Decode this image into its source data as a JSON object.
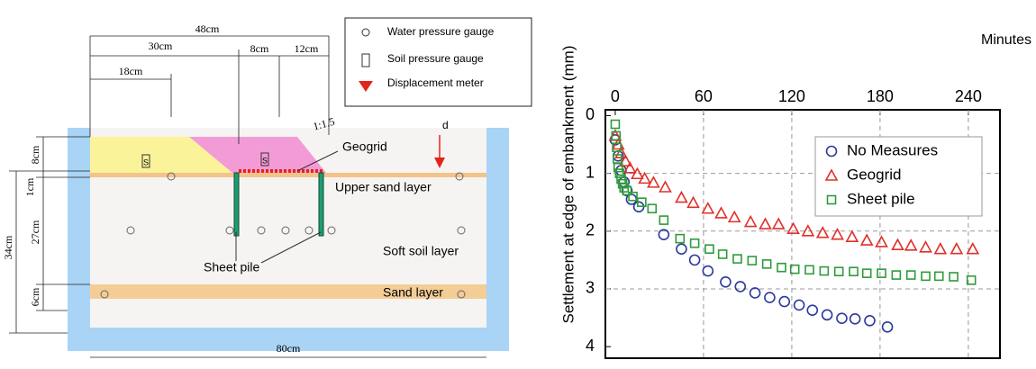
{
  "diagram": {
    "legend": {
      "water_gauge": "Water pressure gauge",
      "soil_gauge": "Soil pressure gauge",
      "displacement": "Displacement meter"
    },
    "dimensions": {
      "total_top": "48cm",
      "left_top": "30cm",
      "mid_top": "8cm",
      "right_top": "12cm",
      "inner_top": "18cm",
      "bottom": "80cm",
      "height": "34cm",
      "embank": "8cm",
      "upper": "1cm",
      "soft": "27cm",
      "sand": "6cm"
    },
    "labels": {
      "slope": "1:1.5",
      "geogrid": "Geogrid",
      "d": "d",
      "upper_sand": "Upper sand layer",
      "sheet_pile": "Sheet pile",
      "soft_soil": "Soft soil layer",
      "sand_layer": "Sand layer",
      "gauge_s": "S"
    }
  },
  "chart_data": {
    "type": "scatter",
    "x_label": "Minutes",
    "y_label": "Settlement at edge of embankment (mm)",
    "xlim": [
      -6.7,
      261.5
    ],
    "xticks": [
      0,
      60,
      120,
      180,
      240
    ],
    "ylim": [
      -0.1,
      4.2
    ],
    "yticks": [
      0,
      1,
      2,
      3,
      4
    ],
    "y_inverted": true,
    "grid": true,
    "legend": "upper-right",
    "series": [
      {
        "name": "No Measures",
        "color": "#2b3a9b",
        "marker": "circle",
        "x": [
          0,
          2,
          4,
          6,
          8,
          11,
          16,
          33,
          45,
          54,
          63,
          75,
          85,
          95,
          105,
          115,
          125,
          134,
          144,
          154,
          163,
          173,
          185
        ],
        "values": [
          0.42,
          0.7,
          0.95,
          1.15,
          1.3,
          1.45,
          1.58,
          2.06,
          2.31,
          2.5,
          2.69,
          2.88,
          2.96,
          3.07,
          3.15,
          3.22,
          3.28,
          3.37,
          3.45,
          3.51,
          3.52,
          3.55,
          3.66
        ]
      },
      {
        "name": "Geogrid",
        "color": "#e0302a",
        "marker": "triangle",
        "x": [
          0,
          2,
          4,
          7,
          10,
          15,
          20,
          26,
          34,
          45,
          53,
          63,
          72,
          81,
          92,
          102,
          111,
          121,
          131,
          141,
          151,
          161,
          171,
          181,
          192,
          201,
          211,
          221,
          232,
          243
        ],
        "values": [
          0.35,
          0.5,
          0.65,
          0.79,
          0.91,
          1.01,
          1.09,
          1.16,
          1.24,
          1.42,
          1.51,
          1.61,
          1.69,
          1.76,
          1.84,
          1.88,
          1.88,
          1.96,
          2.0,
          2.03,
          2.06,
          2.1,
          2.16,
          2.19,
          2.24,
          2.25,
          2.28,
          2.31,
          2.31,
          2.31
        ]
      },
      {
        "name": "Sheet pile",
        "color": "#2e9b3a",
        "marker": "square",
        "x": [
          0,
          0.5,
          1,
          1.5,
          2,
          3,
          4,
          5,
          6,
          8,
          12,
          18,
          25,
          33,
          44,
          54,
          64,
          73,
          83,
          93,
          103,
          113,
          122,
          132,
          142,
          152,
          162,
          171,
          181,
          191,
          201,
          211,
          220,
          230,
          242
        ],
        "values": [
          0.15,
          0.35,
          0.55,
          0.75,
          0.9,
          1.0,
          1.1,
          1.18,
          1.25,
          1.3,
          1.4,
          1.5,
          1.61,
          1.81,
          2.13,
          2.21,
          2.31,
          2.4,
          2.48,
          2.51,
          2.57,
          2.63,
          2.66,
          2.67,
          2.69,
          2.7,
          2.7,
          2.73,
          2.73,
          2.76,
          2.76,
          2.78,
          2.78,
          2.79,
          2.85
        ]
      }
    ]
  }
}
